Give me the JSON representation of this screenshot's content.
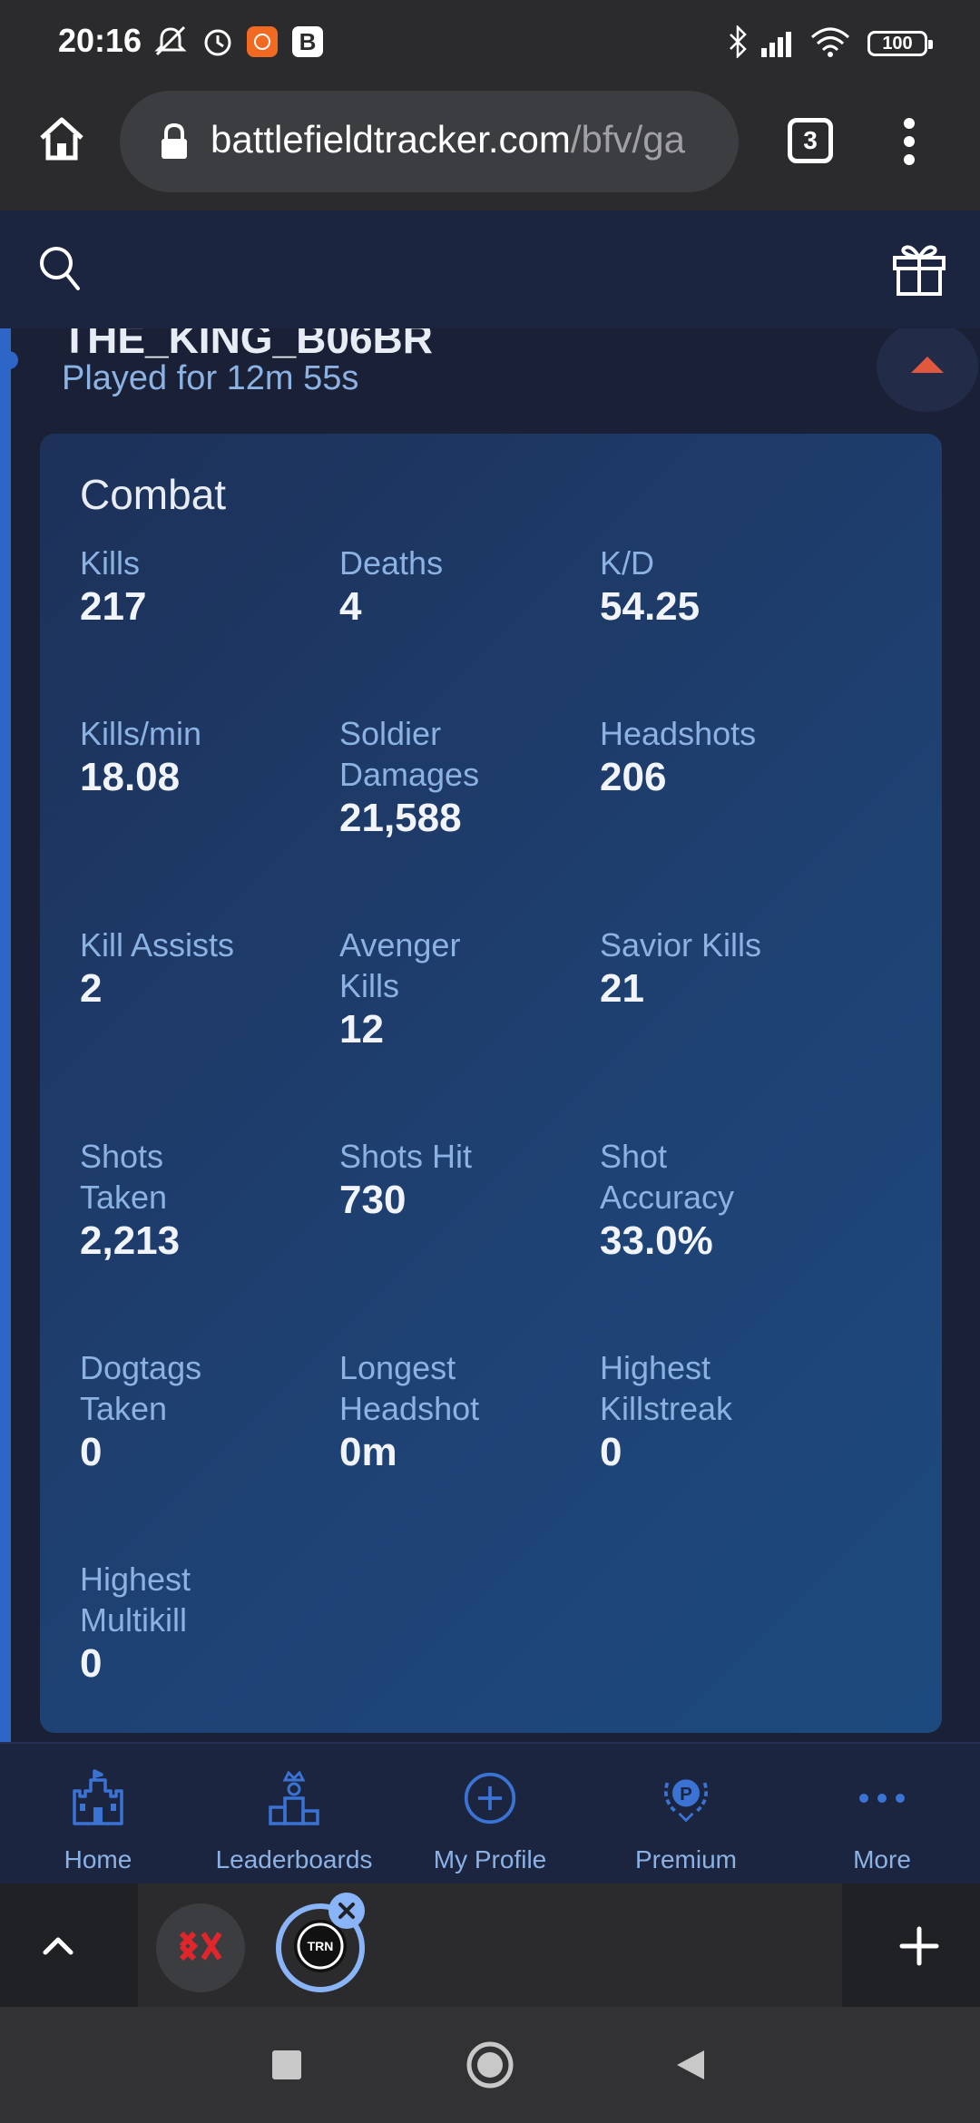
{
  "status_bar": {
    "time": "20:16",
    "battery": "100",
    "icons": [
      "mute-icon",
      "alarm-icon",
      "app-notification-icon",
      "b-icon",
      "bluetooth-icon",
      "signal-icon",
      "wifi-icon"
    ]
  },
  "browser": {
    "url_main": "battlefieldtracker.com",
    "url_path": "/bfv/ga",
    "tab_count": "3"
  },
  "player": {
    "name": "THE_KING_B06BR",
    "played_for": "Played for 12m 55s"
  },
  "combat": {
    "title": "Combat",
    "stats": [
      {
        "label": "Kills",
        "value": "217"
      },
      {
        "label": "Deaths",
        "value": "4"
      },
      {
        "label": "K/D",
        "value": "54.25"
      },
      {
        "label": "Kills/min",
        "value": "18.08"
      },
      {
        "label": "Soldier Damages",
        "value": "21,588"
      },
      {
        "label": "Headshots",
        "value": "206"
      },
      {
        "label": "Kill Assists",
        "value": "2"
      },
      {
        "label": "Avenger Kills",
        "value": "12"
      },
      {
        "label": "Savior Kills",
        "value": "21"
      },
      {
        "label": "Shots Taken",
        "value": "2,213"
      },
      {
        "label": "Shots Hit",
        "value": "730"
      },
      {
        "label": "Shot Accuracy",
        "value": "33.0%"
      },
      {
        "label": "Dogtags Taken",
        "value": "0"
      },
      {
        "label": "Longest Headshot",
        "value": "0m"
      },
      {
        "label": "Highest Killstreak",
        "value": "0"
      },
      {
        "label": "Highest Multikill",
        "value": "0"
      }
    ]
  },
  "bottom_nav": {
    "items": [
      {
        "label": "Home",
        "icon": "castle-icon"
      },
      {
        "label": "Leaderboards",
        "icon": "podium-icon"
      },
      {
        "label": "My Profile",
        "icon": "add-circle-icon"
      },
      {
        "label": "Premium",
        "icon": "premium-badge-icon"
      },
      {
        "label": "More",
        "icon": "more-dots-icon"
      }
    ]
  },
  "colors": {
    "accent": "#2d66c7",
    "label_blue": "#8cb2e4",
    "collapse_arrow": "#e2583e"
  }
}
